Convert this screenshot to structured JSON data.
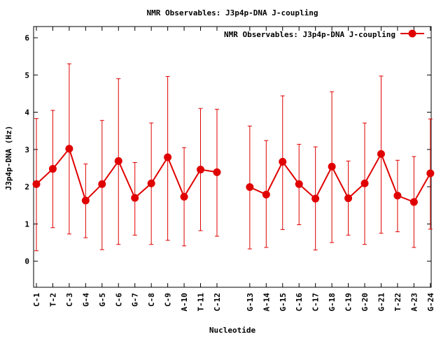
{
  "chart_data": {
    "type": "line",
    "title": "NMR Observables: J3p4p-DNA J-coupling",
    "xlabel": "Nucleotide",
    "ylabel": "J3p4p-DNA (Hz)",
    "ylim": [
      -0.7,
      6.3
    ],
    "yticks": [
      0,
      1,
      2,
      3,
      4,
      5,
      6
    ],
    "grid": false,
    "legend_position": "top-right",
    "series_color": "#e00000",
    "segments": [
      {
        "categories": [
          "C-1",
          "T-2",
          "C-3",
          "G-4",
          "G-5",
          "C-6",
          "G-7",
          "C-8",
          "C-9",
          "A-10",
          "T-11",
          "C-12"
        ],
        "values": [
          2.07,
          2.48,
          3.02,
          1.63,
          2.07,
          2.69,
          1.7,
          2.09,
          2.79,
          1.73,
          2.46,
          2.39
        ],
        "err_low": [
          0.28,
          0.9,
          0.73,
          0.63,
          0.31,
          0.45,
          0.7,
          0.45,
          0.56,
          0.41,
          0.82,
          0.67
        ],
        "err_high": [
          3.83,
          4.05,
          5.3,
          2.61,
          3.78,
          4.9,
          2.65,
          3.71,
          4.96,
          3.05,
          4.1,
          4.08
        ]
      },
      {
        "categories": [
          "G-13",
          "A-14",
          "G-15",
          "C-16",
          "C-17",
          "G-18",
          "C-19",
          "G-20",
          "G-21",
          "T-22",
          "A-23",
          "G-24"
        ],
        "values": [
          1.99,
          1.79,
          2.67,
          2.07,
          1.68,
          2.54,
          1.69,
          2.09,
          2.88,
          1.76,
          1.59,
          2.36
        ],
        "err_low": [
          0.33,
          0.37,
          0.85,
          0.98,
          0.3,
          0.5,
          0.7,
          0.45,
          0.75,
          0.79,
          0.37,
          0.86
        ],
        "err_high": [
          3.63,
          3.24,
          4.44,
          3.14,
          3.07,
          4.55,
          2.69,
          3.71,
          4.97,
          2.71,
          2.81,
          3.82
        ]
      }
    ],
    "series": [
      {
        "name": "NMR Observables: J3p4p-DNA J-coupling"
      }
    ]
  }
}
